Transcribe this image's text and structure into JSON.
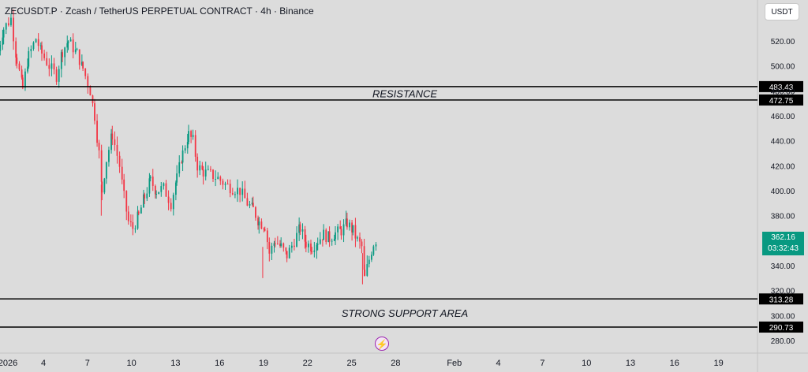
{
  "header": {
    "title": "ZECUSDT.P · Zcash / TetherUS PERPETUAL CONTRACT · 4h · Binance",
    "currency_button": "USDT"
  },
  "price_tag": {
    "price": "362.16",
    "countdown": "03:32:43",
    "color": "#089981"
  },
  "events_icon": "lightning-icon",
  "chart_data": {
    "type": "candlestick",
    "symbol": "ZECUSDT.P",
    "timeframe": "4h",
    "exchange": "Binance",
    "yaxis": {
      "min": 270,
      "max": 545,
      "ticks": [
        280,
        300,
        320,
        340,
        360,
        380,
        400,
        420,
        440,
        460,
        480,
        500,
        520
      ]
    },
    "xaxis": {
      "ticks": [
        {
          "label": "2026",
          "day": 1
        },
        {
          "label": "4",
          "day": 4
        },
        {
          "label": "7",
          "day": 7
        },
        {
          "label": "10",
          "day": 10
        },
        {
          "label": "13",
          "day": 13
        },
        {
          "label": "16",
          "day": 16
        },
        {
          "label": "19",
          "day": 19
        },
        {
          "label": "22",
          "day": 22
        },
        {
          "label": "25",
          "day": 25
        },
        {
          "label": "28",
          "day": 28
        },
        {
          "label": "Feb",
          "day": 32
        },
        {
          "label": "4",
          "day": 35
        },
        {
          "label": "7",
          "day": 38
        },
        {
          "label": "10",
          "day": 41
        },
        {
          "label": "13",
          "day": 44
        },
        {
          "label": "16",
          "day": 47
        },
        {
          "label": "19",
          "day": 50
        }
      ]
    },
    "levels": [
      {
        "value": 483.43,
        "label": "483.43"
      },
      {
        "value": 472.75,
        "label": "472.75"
      },
      {
        "value": 313.28,
        "label": "313.28"
      },
      {
        "value": 290.73,
        "label": "290.73"
      }
    ],
    "zones": [
      {
        "label": "RESISTANCE",
        "from": 472.75,
        "to": 483.43
      },
      {
        "label": "STRONG SUPPORT AREA",
        "from": 290.73,
        "to": 313.28
      }
    ],
    "up_color": "#089981",
    "down_color": "#f23645",
    "anchors": [
      [
        1.0,
        512
      ],
      [
        1.4,
        530
      ],
      [
        1.9,
        538
      ],
      [
        2.3,
        505
      ],
      [
        2.7,
        482
      ],
      [
        3.1,
        508
      ],
      [
        3.6,
        522
      ],
      [
        4.0,
        510
      ],
      [
        4.5,
        500
      ],
      [
        5.0,
        492
      ],
      [
        5.4,
        512
      ],
      [
        5.8,
        520
      ],
      [
        6.4,
        510
      ],
      [
        6.8,
        498
      ],
      [
        7.3,
        480
      ],
      [
        7.6,
        460
      ],
      [
        7.9,
        430
      ],
      [
        8.1,
        400
      ],
      [
        8.4,
        425
      ],
      [
        8.8,
        445
      ],
      [
        9.3,
        420
      ],
      [
        9.6,
        395
      ],
      [
        9.9,
        375
      ],
      [
        10.2,
        370
      ],
      [
        10.6,
        380
      ],
      [
        11.0,
        395
      ],
      [
        11.4,
        408
      ],
      [
        11.8,
        400
      ],
      [
        12.3,
        402
      ],
      [
        12.8,
        390
      ],
      [
        13.2,
        410
      ],
      [
        13.6,
        430
      ],
      [
        14.0,
        445
      ],
      [
        14.3,
        440
      ],
      [
        14.6,
        420
      ],
      [
        15.0,
        415
      ],
      [
        15.5,
        413
      ],
      [
        16.0,
        410
      ],
      [
        16.5,
        405
      ],
      [
        17.0,
        402
      ],
      [
        17.5,
        400
      ],
      [
        18.0,
        390
      ],
      [
        18.4,
        385
      ],
      [
        18.8,
        375
      ],
      [
        19.2,
        372
      ],
      [
        19.5,
        350
      ],
      [
        19.9,
        360
      ],
      [
        20.3,
        355
      ],
      [
        20.7,
        348
      ],
      [
        21.2,
        360
      ],
      [
        21.6,
        370
      ],
      [
        22.0,
        358
      ],
      [
        22.4,
        355
      ],
      [
        22.8,
        360
      ],
      [
        23.2,
        365
      ],
      [
        23.6,
        362
      ],
      [
        24.0,
        366
      ],
      [
        24.4,
        368
      ],
      [
        24.8,
        374
      ],
      [
        25.2,
        368
      ],
      [
        25.5,
        360
      ],
      [
        25.8,
        355
      ],
      [
        26.0,
        330
      ],
      [
        26.3,
        345
      ],
      [
        26.6,
        358
      ],
      [
        26.9,
        362.16
      ]
    ]
  }
}
